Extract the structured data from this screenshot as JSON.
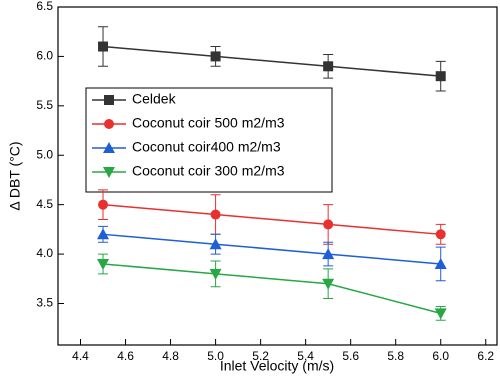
{
  "chart_data": {
    "type": "line",
    "x_label": "Inlet Velocity (m/s)",
    "y_label": "Δ DBT (°C)",
    "x": [
      4.5,
      5.0,
      5.5,
      6.0
    ],
    "series": [
      {
        "name": "Celdek",
        "color": "#333333",
        "marker": "square",
        "values": [
          6.1,
          6.0,
          5.9,
          5.8
        ],
        "errors": [
          0.2,
          0.1,
          0.12,
          0.15
        ]
      },
      {
        "name": "Coconut coir 500 m2/m3",
        "color": "#e8312f",
        "marker": "circle",
        "values": [
          4.5,
          4.4,
          4.3,
          4.2
        ],
        "errors": [
          0.15,
          0.2,
          0.2,
          0.1
        ]
      },
      {
        "name": "Coconut coir400 m2/m3",
        "color": "#1f5fd6",
        "marker": "triangle-up",
        "values": [
          4.2,
          4.1,
          4.0,
          3.9
        ],
        "errors": [
          0.08,
          0.1,
          0.12,
          0.17
        ]
      },
      {
        "name": "Coconut coir 300 m2/m3",
        "color": "#27a745",
        "marker": "triangle-down",
        "values": [
          3.9,
          3.8,
          3.7,
          3.4
        ],
        "errors": [
          0.1,
          0.13,
          0.15,
          0.07
        ]
      }
    ],
    "xlim": [
      4.3,
      6.25
    ],
    "ylim": [
      3.08,
      6.5
    ],
    "xticks": [
      4.4,
      4.6,
      4.8,
      {
        "value": 5.0,
        "label": "5.0"
      },
      5.2,
      5.4,
      5.6,
      5.8,
      {
        "value": 6.0,
        "label": "6.0"
      },
      6.2
    ],
    "yticks": [
      3.5,
      {
        "value": 4.0,
        "label": "4.0"
      },
      4.5,
      {
        "value": 5.0,
        "label": "5.0"
      },
      5.5,
      {
        "value": 6.0,
        "label": "6.0"
      },
      6.5
    ],
    "legend": "center-left",
    "grid": false
  }
}
